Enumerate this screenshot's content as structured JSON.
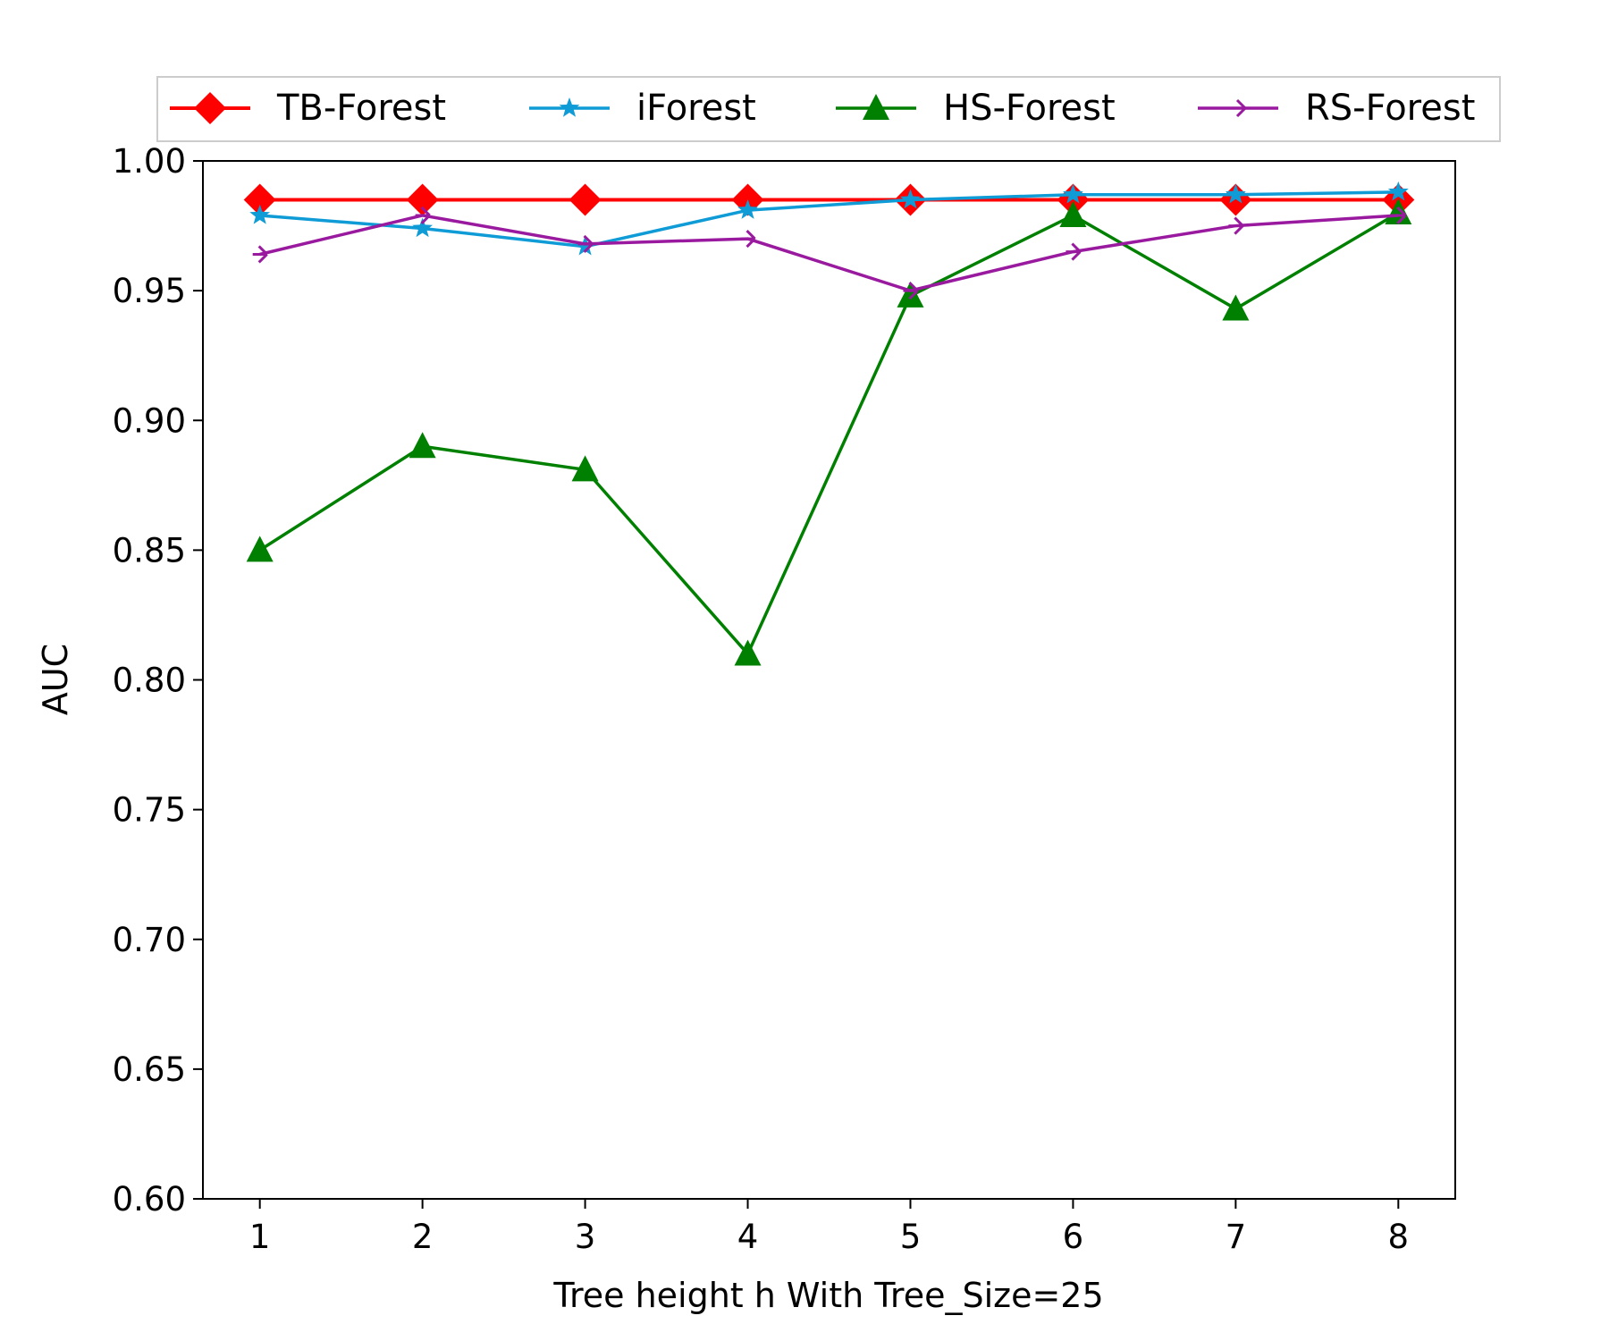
{
  "chart_data": {
    "type": "line",
    "title": "",
    "xlabel": "Tree height h With Tree_Size=25",
    "ylabel": "AUC",
    "x": [
      1,
      2,
      3,
      4,
      5,
      6,
      7,
      8
    ],
    "xlim": [
      0.65,
      8.35
    ],
    "ylim": [
      0.6,
      1.0
    ],
    "xticks": [
      "1",
      "2",
      "3",
      "4",
      "5",
      "6",
      "7",
      "8"
    ],
    "yticks": [
      "0.60",
      "0.65",
      "0.70",
      "0.75",
      "0.80",
      "0.85",
      "0.90",
      "0.95",
      "1.00"
    ],
    "grid": false,
    "legend_position": "top, outside the plot, single row",
    "series": [
      {
        "name": "TB-Forest",
        "color": "#ff0000",
        "marker": "diamond",
        "values": [
          0.985,
          0.985,
          0.985,
          0.985,
          0.985,
          0.985,
          0.985,
          0.985
        ]
      },
      {
        "name": "iForest",
        "color": "#0e9bd6",
        "marker": "star",
        "values": [
          0.979,
          0.974,
          0.967,
          0.981,
          0.985,
          0.987,
          0.987,
          0.988
        ]
      },
      {
        "name": "HS-Forest",
        "color": "#008000",
        "marker": "triangle",
        "values": [
          0.85,
          0.89,
          0.881,
          0.81,
          0.948,
          0.979,
          0.943,
          0.98
        ]
      },
      {
        "name": "RS-Forest",
        "color": "#9a1a9f",
        "marker": "tri-right",
        "values": [
          0.964,
          0.979,
          0.968,
          0.97,
          0.95,
          0.965,
          0.975,
          0.979
        ]
      }
    ]
  }
}
